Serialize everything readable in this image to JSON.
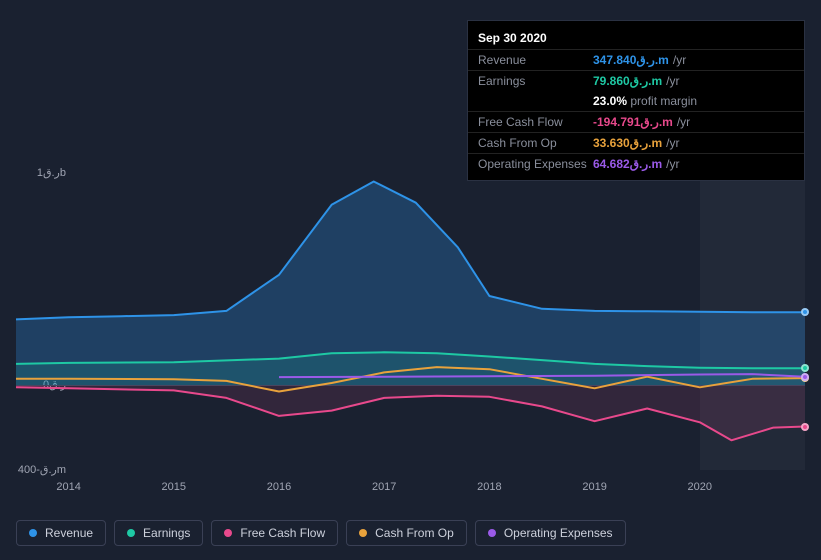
{
  "tooltip": {
    "date": "Sep 30 2020",
    "rows": [
      {
        "label": "Revenue",
        "value": "347.840",
        "suffix": "ر.ق.m",
        "unit": "/yr",
        "color": "#2e93e8"
      },
      {
        "label": "Earnings",
        "value": "79.860",
        "suffix": "ر.ق.m",
        "unit": "/yr",
        "color": "#1ec9a4"
      },
      {
        "label": "Free Cash Flow",
        "value": "-194.791",
        "suffix": "ر.ق.m",
        "unit": "/yr",
        "color": "#e8498c"
      },
      {
        "label": "Cash From Op",
        "value": "33.630",
        "suffix": "ر.ق.m",
        "unit": "/yr",
        "color": "#e8a23c"
      },
      {
        "label": "Operating Expenses",
        "value": "64.682",
        "suffix": "ر.ق.m",
        "unit": "/yr",
        "color": "#9a5ae8"
      }
    ],
    "profit_margin": {
      "value": "23.0%",
      "label": "profit margin"
    }
  },
  "chart": {
    "background": "#1a2130",
    "y_axis": {
      "ticks": [
        {
          "label": "ر.ق1b",
          "v": 1000
        },
        {
          "label": "ر.ق0",
          "v": 0
        },
        {
          "label": "ر.ق-400m",
          "v": -400
        }
      ],
      "domain": [
        -400,
        1000
      ]
    },
    "x_axis": {
      "ticks": [
        "2014",
        "2015",
        "2016",
        "2017",
        "2018",
        "2019",
        "2020"
      ],
      "domain": [
        2013.5,
        2021
      ]
    },
    "highlight": {
      "from": 2020.0,
      "to": 2021
    },
    "series": [
      {
        "name": "Revenue",
        "color": "#2e93e8",
        "fill_opacity": 0.28,
        "points": [
          [
            2013.5,
            310
          ],
          [
            2014,
            320
          ],
          [
            2014.5,
            325
          ],
          [
            2015,
            330
          ],
          [
            2015.5,
            350
          ],
          [
            2016,
            520
          ],
          [
            2016.5,
            850
          ],
          [
            2016.9,
            960
          ],
          [
            2017.3,
            860
          ],
          [
            2017.7,
            650
          ],
          [
            2018,
            420
          ],
          [
            2018.5,
            360
          ],
          [
            2019,
            350
          ],
          [
            2019.5,
            348
          ],
          [
            2020,
            346
          ],
          [
            2020.5,
            344
          ],
          [
            2021,
            344
          ]
        ]
      },
      {
        "name": "Earnings",
        "color": "#1ec9a4",
        "fill_opacity": 0.14,
        "points": [
          [
            2013.5,
            100
          ],
          [
            2014,
            105
          ],
          [
            2015,
            108
          ],
          [
            2016,
            125
          ],
          [
            2016.5,
            150
          ],
          [
            2017,
            155
          ],
          [
            2017.5,
            150
          ],
          [
            2018,
            135
          ],
          [
            2018.5,
            118
          ],
          [
            2019,
            100
          ],
          [
            2019.5,
            90
          ],
          [
            2020,
            82
          ],
          [
            2020.5,
            80
          ],
          [
            2021,
            80
          ]
        ]
      },
      {
        "name": "Free Cash Flow",
        "color": "#e8498c",
        "fill_opacity": 0.12,
        "points": [
          [
            2013.5,
            -10
          ],
          [
            2014,
            -15
          ],
          [
            2015,
            -25
          ],
          [
            2015.5,
            -60
          ],
          [
            2016,
            -145
          ],
          [
            2016.5,
            -120
          ],
          [
            2017,
            -60
          ],
          [
            2017.5,
            -50
          ],
          [
            2018,
            -55
          ],
          [
            2018.5,
            -100
          ],
          [
            2019,
            -170
          ],
          [
            2019.5,
            -110
          ],
          [
            2020,
            -175
          ],
          [
            2020.3,
            -260
          ],
          [
            2020.7,
            -200
          ],
          [
            2021,
            -195
          ]
        ]
      },
      {
        "name": "Cash From Op",
        "color": "#e8a23c",
        "fill_opacity": 0.0,
        "points": [
          [
            2013.5,
            30
          ],
          [
            2014,
            30
          ],
          [
            2015,
            28
          ],
          [
            2015.5,
            20
          ],
          [
            2016,
            -30
          ],
          [
            2016.5,
            10
          ],
          [
            2017,
            60
          ],
          [
            2017.5,
            85
          ],
          [
            2018,
            75
          ],
          [
            2018.5,
            30
          ],
          [
            2019,
            -15
          ],
          [
            2019.5,
            40
          ],
          [
            2020,
            -10
          ],
          [
            2020.5,
            30
          ],
          [
            2021,
            33
          ]
        ]
      },
      {
        "name": "Operating Expenses",
        "color": "#9a5ae8",
        "fill_opacity": 0.0,
        "points": [
          [
            2016,
            38
          ],
          [
            2017,
            40
          ],
          [
            2018,
            42
          ],
          [
            2019,
            44
          ],
          [
            2020,
            50
          ],
          [
            2020.5,
            52
          ],
          [
            2021,
            40
          ]
        ]
      }
    ]
  },
  "legend": [
    {
      "label": "Revenue",
      "color": "#2e93e8"
    },
    {
      "label": "Earnings",
      "color": "#1ec9a4"
    },
    {
      "label": "Free Cash Flow",
      "color": "#e8498c"
    },
    {
      "label": "Cash From Op",
      "color": "#e8a23c"
    },
    {
      "label": "Operating Expenses",
      "color": "#9a5ae8"
    }
  ]
}
